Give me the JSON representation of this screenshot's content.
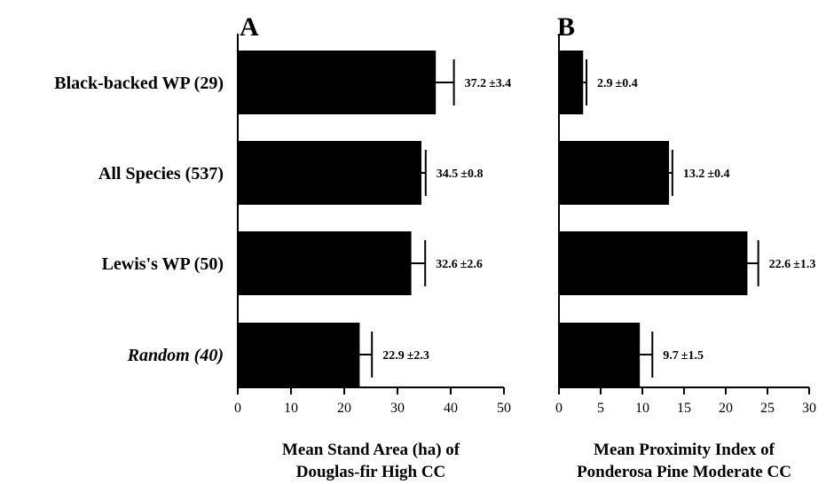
{
  "chart_data": [
    {
      "type": "bar",
      "orientation": "horizontal",
      "panel_label": "A",
      "categories": [
        "Black-backed WP (29)",
        "All Species (537)",
        "Lewis's WP (50)",
        "Random (40)"
      ],
      "category_italic": [
        false,
        false,
        false,
        true
      ],
      "values": [
        37.2,
        34.5,
        32.6,
        22.9
      ],
      "errors": [
        3.4,
        0.8,
        2.6,
        2.3
      ],
      "value_labels": [
        "37.2",
        "34.5",
        "32.6",
        "22.9"
      ],
      "error_labels": [
        "3.4",
        "0.8",
        "2.6",
        "2.3"
      ],
      "xlabel_lines": [
        "Mean Stand Area (ha) of",
        "Douglas-fir High CC"
      ],
      "xlim": [
        0,
        50
      ],
      "xticks": [
        "0",
        "10",
        "20",
        "30",
        "40",
        "50"
      ],
      "bar_color": "#000000",
      "grid": false
    },
    {
      "type": "bar",
      "orientation": "horizontal",
      "panel_label": "B",
      "categories": [
        "Black-backed WP (29)",
        "All Species (537)",
        "Lewis's WP (50)",
        "Random (40)"
      ],
      "values": [
        2.9,
        13.2,
        22.6,
        9.7
      ],
      "errors": [
        0.4,
        0.4,
        1.3,
        1.5
      ],
      "value_labels": [
        "2.9",
        "13.2",
        "22.6",
        "9.7"
      ],
      "error_labels": [
        "0.4",
        "0.4",
        "1.3",
        "1.5"
      ],
      "xlabel_lines": [
        "Mean Proximity Index of",
        "Ponderosa Pine Moderate CC"
      ],
      "xlim": [
        0,
        30
      ],
      "xticks": [
        "0",
        "5",
        "10",
        "15",
        "20",
        "25",
        "30"
      ],
      "bar_color": "#000000",
      "grid": false
    }
  ]
}
